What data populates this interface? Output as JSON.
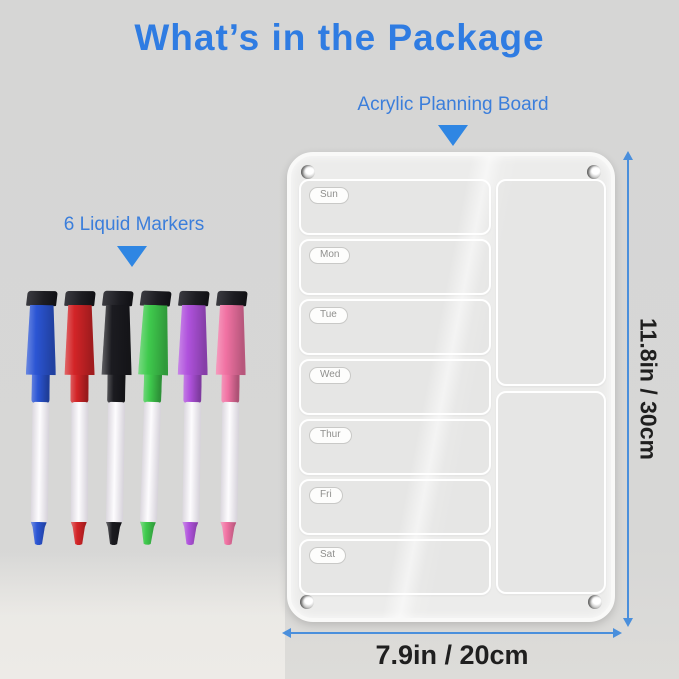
{
  "page": {
    "title": "What’s in the Package",
    "title_color": "#2f7ce2",
    "background_color": "#d6d6d5"
  },
  "annotations": {
    "board_label": "Acrylic Planning Board",
    "markers_label": "6 Liquid Markers",
    "label_color": "#3b7edb",
    "pointer_color": "#2f86e3"
  },
  "dimensions": {
    "height_label": "11.8in / 30cm",
    "width_label": "7.9in / 20cm",
    "arrow_color": "#4a8fdc",
    "text_color": "#1f1f1f"
  },
  "board": {
    "days": [
      "Sun",
      "Mon",
      "Tue",
      "Wed",
      "Thur",
      "Fri",
      "Sat"
    ],
    "note_boxes": 2,
    "corner_screws": 4
  },
  "markers": {
    "count": 6,
    "eraser_hex": "#1d1d22",
    "colors": [
      {
        "name": "blue",
        "hex": "#2b55d4"
      },
      {
        "name": "red",
        "hex": "#d32427"
      },
      {
        "name": "black",
        "hex": "#1b1b20"
      },
      {
        "name": "green",
        "hex": "#3fca4d"
      },
      {
        "name": "purple",
        "hex": "#b052dd"
      },
      {
        "name": "pink",
        "hex": "#f172a3"
      }
    ]
  }
}
